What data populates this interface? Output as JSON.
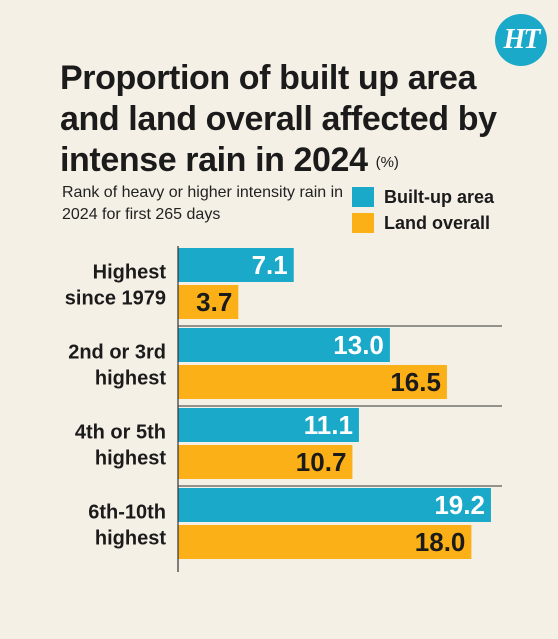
{
  "chart_data": {
    "type": "bar",
    "orientation": "horizontal",
    "title": "Proportion of built up area and land overall affected by intense rain in 2024",
    "unit": "(%)",
    "subtitle": "Rank of heavy or higher intensity rain in 2024  for first 265 days",
    "categories": [
      [
        "Highest",
        "since 1979"
      ],
      [
        "2nd or 3rd",
        "highest"
      ],
      [
        "4th or 5th",
        "highest"
      ],
      [
        "6th-10th",
        "highest"
      ]
    ],
    "series": [
      {
        "name": "Built-up area",
        "color": "#1aa9c8",
        "values": [
          7.1,
          13.0,
          11.1,
          19.2
        ]
      },
      {
        "name": "Land overall",
        "color": "#fbb017",
        "values": [
          3.7,
          16.5,
          10.7,
          18.0
        ]
      }
    ],
    "xlim": [
      0,
      20
    ],
    "legend_position": "top-right"
  },
  "brand": {
    "logo_text": "HT"
  }
}
